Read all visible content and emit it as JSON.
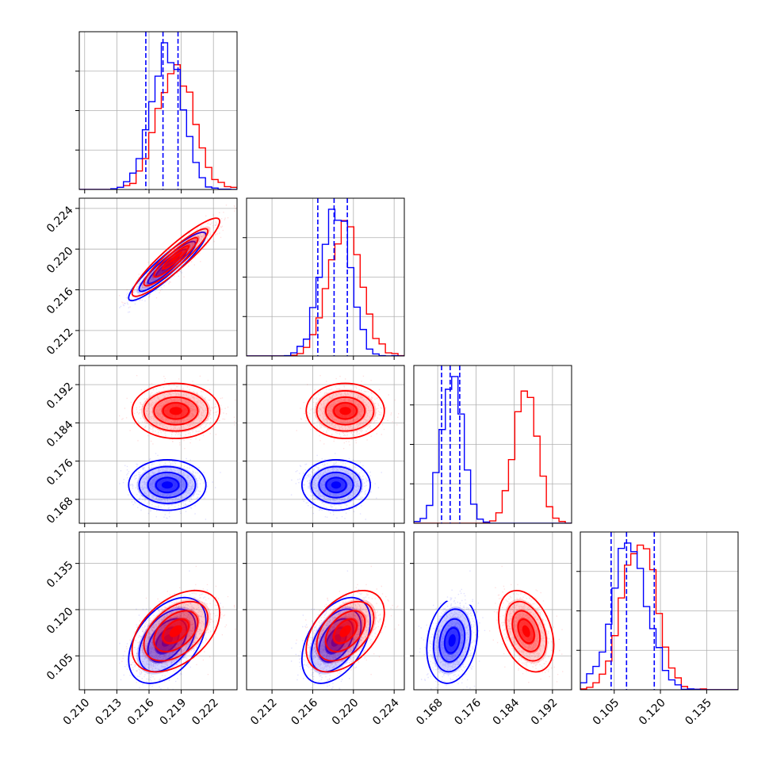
{
  "chart_data": {
    "type": "scatter",
    "subtype": "corner-plot",
    "title": "",
    "colors": {
      "series_a": "#0000ff",
      "series_b": "#ff0000",
      "grid": "#b0b0b0"
    },
    "grid": true,
    "legend": "none",
    "quantile_lines": "dashed",
    "series": [
      {
        "color": "blue",
        "means": [
          0.2177,
          0.2183,
          0.171,
          0.11
        ],
        "sigmas": [
          0.0015,
          0.0014,
          0.0022,
          0.0058
        ],
        "correlations": {
          "1-0": 0.92,
          "3-0": 0.45,
          "3-1": 0.45,
          "3-2": 0.2
        },
        "quantiles": [
          [
            0.2157,
            0.2173,
            0.2187
          ],
          [
            0.2165,
            0.2181,
            0.2194
          ],
          [
            0.1688,
            0.1706,
            0.1726
          ],
          [
            0.104,
            0.109,
            0.118
          ]
        ]
      },
      {
        "color": "red",
        "means": [
          0.2185,
          0.2192,
          0.1865,
          0.113
        ],
        "sigmas": [
          0.0017,
          0.0016,
          0.0024,
          0.0055
        ],
        "correlations": {
          "1-0": 0.92,
          "3-0": 0.45,
          "3-1": 0.45,
          "3-2": -0.35
        }
      }
    ],
    "subplots": [
      {
        "row": 0,
        "col": 0,
        "kind": "histogram",
        "xlim": [
          0.2095,
          0.2242
        ]
      },
      {
        "row": 1,
        "col": 0,
        "kind": "scatter-contour",
        "xlim": [
          0.2095,
          0.2242
        ],
        "ylim": [
          0.2095,
          0.225
        ]
      },
      {
        "row": 1,
        "col": 1,
        "kind": "histogram",
        "xlim": [
          0.2095,
          0.225
        ]
      },
      {
        "row": 2,
        "col": 0,
        "kind": "scatter-contour",
        "xlim": [
          0.2095,
          0.2242
        ],
        "ylim": [
          0.163,
          0.196
        ]
      },
      {
        "row": 2,
        "col": 1,
        "kind": "scatter-contour",
        "xlim": [
          0.2095,
          0.225
        ],
        "ylim": [
          0.163,
          0.196
        ]
      },
      {
        "row": 2,
        "col": 2,
        "kind": "histogram",
        "xlim": [
          0.163,
          0.196
        ]
      },
      {
        "row": 3,
        "col": 0,
        "kind": "scatter-contour",
        "xlim": [
          0.2095,
          0.2242
        ],
        "ylim": [
          0.094,
          0.1452
        ]
      },
      {
        "row": 3,
        "col": 1,
        "kind": "scatter-contour",
        "xlim": [
          0.2095,
          0.225
        ],
        "ylim": [
          0.094,
          0.1452
        ]
      },
      {
        "row": 3,
        "col": 2,
        "kind": "scatter-contour",
        "xlim": [
          0.163,
          0.196
        ],
        "ylim": [
          0.094,
          0.1452
        ]
      },
      {
        "row": 3,
        "col": 3,
        "kind": "histogram",
        "xlim": [
          0.094,
          0.1452
        ]
      }
    ],
    "x_tick_labels": [
      [
        "0.210",
        "0.213",
        "0.216",
        "0.219",
        "0.222"
      ],
      [
        "0.212",
        "0.216",
        "0.220",
        "0.224"
      ],
      [
        "0.168",
        "0.176",
        "0.184",
        "0.192"
      ],
      [
        "0.105",
        "0.120",
        "0.135"
      ]
    ],
    "y_tick_labels": [
      [],
      [
        "0.212",
        "0.216",
        "0.220",
        "0.224"
      ],
      [
        "0.168",
        "0.176",
        "0.184",
        "0.192"
      ],
      [
        "0.105",
        "0.120",
        "0.135"
      ]
    ]
  }
}
